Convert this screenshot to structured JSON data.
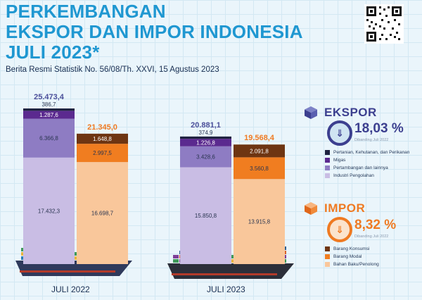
{
  "header": {
    "title_line1": "PERKEMBANGAN",
    "title_line2": "EKSPOR DAN IMPOR INDONESIA",
    "title_line3": "JULI 2023*",
    "subtitle": "Berita Resmi Statistik No. 56/08/Th. XXVI, 15 Agustus 2023"
  },
  "ekspor": {
    "title": "EKSPOR",
    "percent": "18,03 %",
    "note": "Dibanding Juli 2022",
    "direction_icon": "double-chevron-down-icon",
    "legend": [
      "Pertanian, Kehutanan, dan Perikanan",
      "Migas",
      "Pertambangan dan lainnya",
      "Industri Pengolahan"
    ],
    "legend_colors": [
      "#1f2240",
      "#5b2a8f",
      "#8e7cc3",
      "#c9bde4"
    ]
  },
  "impor": {
    "title": "IMPOR",
    "percent": "8,32 %",
    "note": "Dibanding Juli 2022",
    "direction_icon": "double-chevron-down-icon",
    "legend": [
      "Barang Konsumsi",
      "Barang Modal",
      "Bahan Baku/Penolong"
    ],
    "legend_colors": [
      "#6e3512",
      "#f07d20",
      "#f9c79b"
    ]
  },
  "chart_data": {
    "type": "bar",
    "stacked": true,
    "categories": [
      "JULI 2022",
      "JULI 2023"
    ],
    "ekspor_total_labels": [
      "25.473,4",
      "20.881,1"
    ],
    "impor_total_labels": [
      "21.345,0",
      "19.568,4"
    ],
    "ekspor_series": [
      {
        "name": "Industri Pengolahan",
        "values": [
          17432.3,
          15850.8
        ],
        "labels": [
          "17.432,3",
          "15.850,8"
        ],
        "color": "#c9bde4"
      },
      {
        "name": "Pertambangan dan lainnya",
        "values": [
          6366.8,
          3428.6
        ],
        "labels": [
          "6.366,8",
          "3.428,6"
        ],
        "color": "#8e7cc3"
      },
      {
        "name": "Migas",
        "values": [
          1287.6,
          1226.8
        ],
        "labels": [
          "1.287,6",
          "1.226,8"
        ],
        "color": "#5b2a8f"
      },
      {
        "name": "Pertanian, Kehutanan, dan Perikanan",
        "values": [
          386.7,
          374.9
        ],
        "labels": [
          "386,7",
          "374,9"
        ],
        "color": "#1f2240"
      }
    ],
    "impor_series": [
      {
        "name": "Bahan Baku/Penolong",
        "values": [
          16698.7,
          13915.8
        ],
        "labels": [
          "16.698,7",
          "13.915,8"
        ],
        "color": "#f9c79b"
      },
      {
        "name": "Barang Modal",
        "values": [
          2997.5,
          3560.8
        ],
        "labels": [
          "2.997,5",
          "3.560,8"
        ],
        "color": "#f07d20"
      },
      {
        "name": "Barang Konsumsi",
        "values": [
          1648.8,
          2091.8
        ],
        "labels": [
          "1.648,8",
          "2.091,8"
        ],
        "color": "#6e3512"
      }
    ]
  }
}
